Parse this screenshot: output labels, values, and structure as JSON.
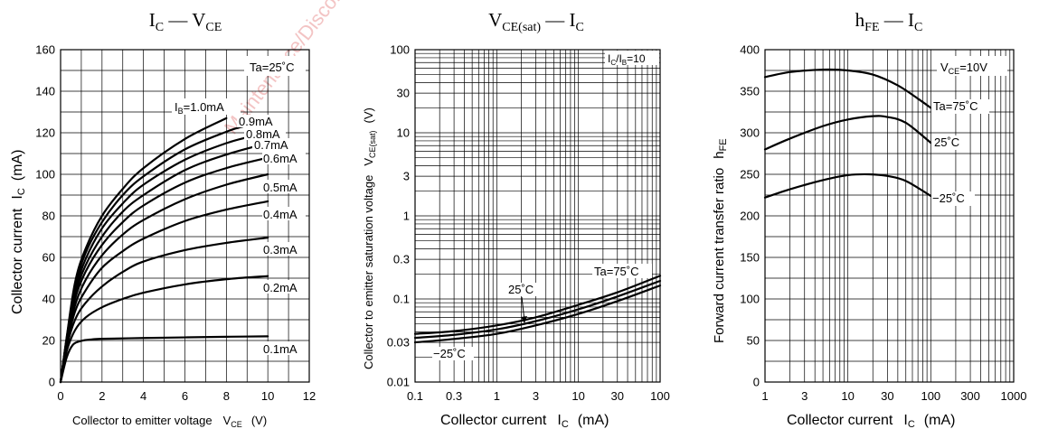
{
  "watermark": "Maintenance/Discontinued — planned maintenance",
  "colors": {
    "line": "#000000",
    "grid": "#000000",
    "watermark": "#f2c1c1",
    "background": "#ffffff"
  },
  "chart_data": [
    {
      "type": "line",
      "title_main": "I",
      "title_sub1": "C",
      "title_dash": " — V",
      "title_sub2": "CE",
      "xlabel": "Collector to emitter voltage",
      "xsym": "V",
      "xsub": "CE",
      "xunit": "(V)",
      "ylabel": "Collector current",
      "ysym": "I",
      "ysub": "C",
      "yunit": "(mA)",
      "condition": "Ta=25˚C",
      "xscale": "linear",
      "xlim": [
        0,
        12
      ],
      "ylim": [
        0,
        160
      ],
      "xticks": [
        0,
        2,
        4,
        6,
        8,
        10,
        12
      ],
      "xtick_labels": [
        "0",
        "2",
        "4",
        "6",
        "8",
        "10",
        "12"
      ],
      "yticks": [
        0,
        20,
        40,
        60,
        80,
        100,
        120,
        140,
        160
      ],
      "ytick_labels": [
        "0",
        "20",
        "40",
        "60",
        "80",
        "100",
        "120",
        "140",
        "160"
      ],
      "grid": true,
      "series": [
        {
          "name": "0.1mA",
          "x": [
            0,
            0.3,
            0.6,
            1,
            1.5,
            2,
            4,
            6,
            8,
            10
          ],
          "y": [
            0,
            12,
            18,
            19.8,
            20.5,
            20.8,
            21.2,
            21.5,
            21.8,
            22
          ]
        },
        {
          "name": "0.2mA",
          "x": [
            0,
            0.3,
            0.7,
            1.2,
            2,
            3,
            4,
            6,
            8,
            10
          ],
          "y": [
            0,
            15,
            25,
            31,
            36,
            40,
            43,
            47,
            49.5,
            51
          ]
        },
        {
          "name": "0.3mA",
          "x": [
            0,
            0.3,
            0.7,
            1.2,
            2,
            3,
            4,
            6,
            8,
            10
          ],
          "y": [
            0,
            17,
            30,
            38,
            46,
            53,
            58,
            63.5,
            67,
            69.5
          ]
        },
        {
          "name": "0.4mA",
          "x": [
            0,
            0.3,
            0.7,
            1.2,
            2,
            3,
            4,
            6,
            8,
            10
          ],
          "y": [
            0,
            18,
            34,
            44,
            55,
            63,
            69,
            77.5,
            83,
            87
          ]
        },
        {
          "name": "0.5mA",
          "x": [
            0,
            0.3,
            0.7,
            1.2,
            2,
            3,
            4,
            6,
            8,
            10
          ],
          "y": [
            0,
            19,
            37,
            49,
            61,
            71,
            78,
            88,
            95,
            100
          ]
        },
        {
          "name": "0.6mA",
          "x": [
            0,
            0.3,
            0.7,
            1.2,
            2,
            3,
            4,
            6,
            8,
            10
          ],
          "y": [
            0,
            20,
            40,
            53,
            66,
            77,
            85,
            96,
            103,
            108
          ]
        },
        {
          "name": "0.7mA",
          "x": [
            0,
            0.3,
            0.7,
            1.2,
            2,
            3,
            4,
            6,
            8,
            10
          ],
          "y": [
            0,
            20.5,
            42,
            56,
            70,
            82,
            90,
            102,
            109.5,
            115
          ]
        },
        {
          "name": "0.8mA",
          "x": [
            0,
            0.3,
            0.7,
            1.2,
            2,
            3,
            4,
            6,
            8,
            9.5
          ],
          "y": [
            0,
            21,
            44,
            59,
            74,
            86,
            95,
            107,
            115,
            119
          ]
        },
        {
          "name": "0.9mA",
          "x": [
            0,
            0.3,
            0.7,
            1.2,
            2,
            3,
            4,
            6,
            8,
            8.8
          ],
          "y": [
            0,
            21.5,
            46,
            62,
            77,
            90,
            99,
            112,
            120.5,
            123
          ]
        },
        {
          "name": "IB=1.0mA",
          "x": [
            0,
            0.3,
            0.7,
            1.2,
            2,
            3,
            4,
            6,
            8
          ],
          "y": [
            0,
            22,
            48,
            64,
            80,
            93,
            103,
            117,
            127
          ]
        }
      ],
      "labels": {
        "ib_prefix": "I",
        "ib_sub": "B",
        "ib_value": "=1.0mA",
        "curve_labels": [
          "0.9mA",
          "0.8mA",
          "0.7mA",
          "0.6mA",
          "0.5mA",
          "0.4mA",
          "0.3mA",
          "0.2mA",
          "0.1mA"
        ]
      }
    },
    {
      "type": "line",
      "title_main": "V",
      "title_sub1": "CE(sat)",
      "title_dash": " — I",
      "title_sub2": "C",
      "xlabel": "Collector current",
      "xsym": "I",
      "xsub": "C",
      "xunit": "(mA)",
      "ylabel": "Collector to emitter saturation voltage",
      "ysym": "V",
      "ysub": "CE(sat)",
      "yunit": "(V)",
      "condition_prefix": "I",
      "condition_sub1": "C",
      "condition_mid": "/I",
      "condition_sub2": "B",
      "condition_value": "=10",
      "xscale": "log",
      "yscale": "log",
      "xlim": [
        0.1,
        100
      ],
      "ylim": [
        0.01,
        100
      ],
      "xticks": [
        0.1,
        0.3,
        1,
        3,
        10,
        30,
        100
      ],
      "xtick_labels": [
        "0.1",
        "0.3",
        "1",
        "3",
        "10",
        "30",
        "100"
      ],
      "yticks": [
        0.01,
        0.03,
        0.1,
        0.3,
        1,
        3,
        10,
        30,
        100
      ],
      "ytick_labels": [
        "0.01",
        "0.03",
        "0.1",
        "0.3",
        "1",
        "3",
        "10",
        "30",
        "100"
      ],
      "grid": true,
      "series": [
        {
          "name": "Ta=75˚C",
          "x": [
            0.1,
            0.3,
            1,
            3,
            10,
            30,
            100
          ],
          "y": [
            0.038,
            0.041,
            0.048,
            0.06,
            0.085,
            0.12,
            0.19
          ]
        },
        {
          "name": "25˚C",
          "x": [
            0.1,
            0.3,
            1,
            3,
            10,
            30,
            100
          ],
          "y": [
            0.034,
            0.037,
            0.043,
            0.054,
            0.075,
            0.107,
            0.165
          ]
        },
        {
          "name": "−25˚C",
          "x": [
            0.1,
            0.3,
            1,
            3,
            10,
            30,
            100
          ],
          "y": [
            0.03,
            0.033,
            0.038,
            0.048,
            0.066,
            0.094,
            0.145
          ]
        }
      ],
      "labels": {
        "ta75": "Ta=75˚C",
        "t25": "25˚C",
        "tm25": "−25˚C"
      }
    },
    {
      "type": "line",
      "title_main": "h",
      "title_sub1": "FE",
      "title_dash": " — I",
      "title_sub2": "C",
      "xlabel": "Collector current",
      "xsym": "I",
      "xsub": "C",
      "xunit": "(mA)",
      "ylabel": "Forward current transfer ratio",
      "ysym": "h",
      "ysub": "FE",
      "yunit": "",
      "condition_prefix": "V",
      "condition_sub1": "CE",
      "condition_value": "=10V",
      "xscale": "log",
      "xlim": [
        1,
        1000
      ],
      "ylim": [
        0,
        400
      ],
      "xticks": [
        1,
        3,
        10,
        30,
        100,
        300,
        1000
      ],
      "xtick_labels": [
        "1",
        "3",
        "10",
        "30",
        "100",
        "300",
        "1000"
      ],
      "yticks": [
        0,
        50,
        100,
        150,
        200,
        250,
        300,
        350,
        400
      ],
      "ytick_labels": [
        "0",
        "50",
        "100",
        "150",
        "200",
        "250",
        "300",
        "350",
        "400"
      ],
      "grid": true,
      "series": [
        {
          "name": "Ta=75˚C",
          "x": [
            1,
            2,
            5,
            10,
            20,
            40,
            70,
            100
          ],
          "y": [
            367,
            373,
            376,
            375,
            370,
            357,
            341,
            330
          ]
        },
        {
          "name": "25˚C",
          "x": [
            1,
            2,
            5,
            10,
            20,
            30,
            50,
            100
          ],
          "y": [
            280,
            293,
            308,
            316,
            320,
            319,
            312,
            288
          ]
        },
        {
          "name": "−25˚C",
          "x": [
            1,
            2,
            5,
            10,
            18,
            30,
            50,
            100
          ],
          "y": [
            222,
            232,
            243,
            249,
            250,
            248,
            242,
            224
          ]
        }
      ],
      "labels": {
        "ta75": "Ta=75˚C",
        "t25": "25˚C",
        "tm25": "−25˚C"
      }
    }
  ]
}
